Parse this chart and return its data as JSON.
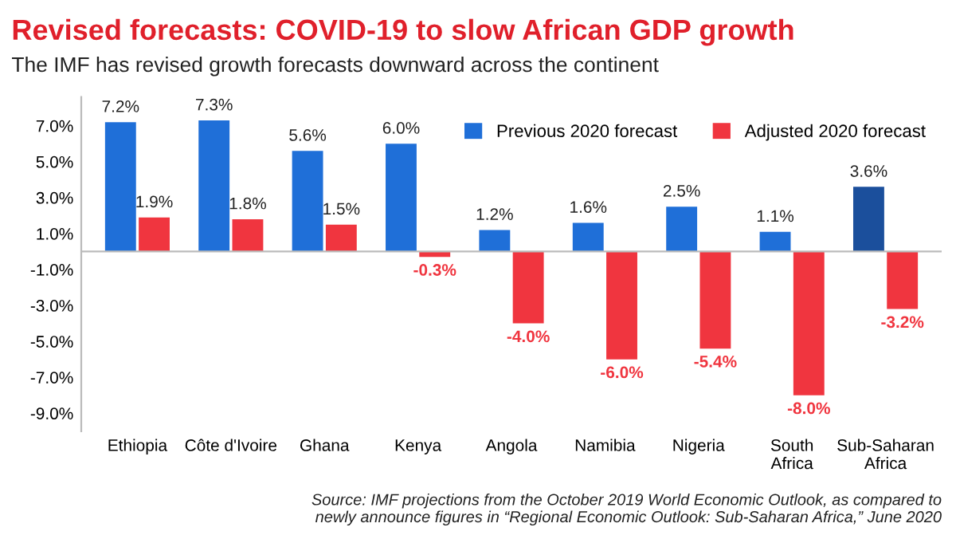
{
  "chart_data": {
    "type": "bar",
    "title": "Revised forecasts: COVID-19 to slow African GDP growth",
    "subtitle": "The IMF has revised growth forecasts downward across the continent",
    "categories": [
      "Ethiopia",
      "Côte d'Ivoire",
      "Ghana",
      "Kenya",
      "Angola",
      "Namibia",
      "Nigeria",
      "South\nAfrica",
      "Sub-Saharan\nAfrica"
    ],
    "series": [
      {
        "name": "Previous 2020 forecast",
        "color": "#1f6fd8",
        "colors": [
          "#1f6fd8",
          "#1f6fd8",
          "#1f6fd8",
          "#1f6fd8",
          "#1f6fd8",
          "#1f6fd8",
          "#1f6fd8",
          "#1f6fd8",
          "#1b4f9c"
        ],
        "values": [
          7.2,
          7.3,
          5.6,
          6.0,
          1.2,
          1.6,
          2.5,
          1.1,
          3.6
        ],
        "value_labels": [
          "7.2%",
          "7.3%",
          "5.6%",
          "6.0%",
          "1.2%",
          "1.6%",
          "2.5%",
          "1.1%",
          "3.6%"
        ]
      },
      {
        "name": "Adjusted 2020 forecast",
        "color": "#f0353f",
        "values": [
          1.9,
          1.8,
          1.5,
          -0.3,
          -4.0,
          -6.0,
          -5.4,
          -8.0,
          -3.2
        ],
        "value_labels": [
          "1.9%",
          "1.8%",
          "1.5%",
          "-0.3%",
          "-4.0%",
          "-6.0%",
          "-5.4%",
          "-8.0%",
          "-3.2%"
        ]
      }
    ],
    "ylim": [
      -10,
      8.6
    ],
    "yticks": [
      {
        "value": 7,
        "label": "7.0%"
      },
      {
        "value": 5,
        "label": "5.0%"
      },
      {
        "value": 3,
        "label": "3.0%"
      },
      {
        "value": 1,
        "label": "1.0%"
      },
      {
        "value": -1,
        "label": "-1.0%"
      },
      {
        "value": -3,
        "label": "-3.0%"
      },
      {
        "value": -5,
        "label": "-5.0%"
      },
      {
        "value": -7,
        "label": "-7.0%"
      },
      {
        "value": -9,
        "label": "-9.0%"
      }
    ],
    "legend": "top right",
    "grid": false,
    "annotations": [
      "Source: IMF projections from the October 2019 World Economic Outlook, as compared to\nnewly announce figures in “Regional Economic Outlook: Sub-Saharan Africa,” June 2020"
    ]
  }
}
